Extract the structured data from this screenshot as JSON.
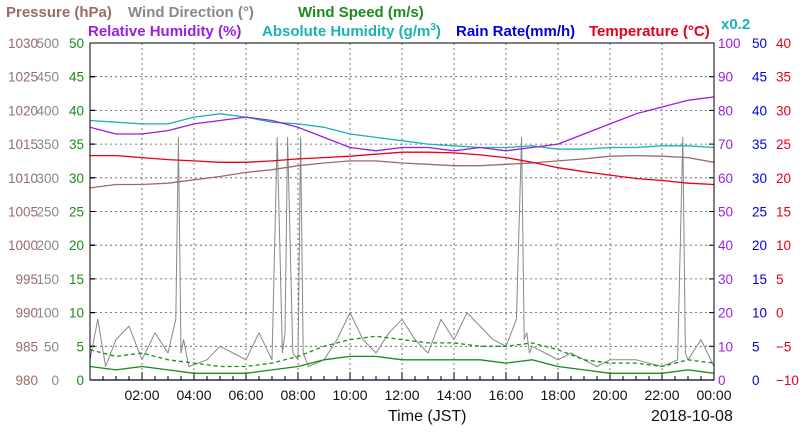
{
  "chart_data": {
    "type": "line",
    "date": "2018-10-08",
    "xlabel": "Time (JST)",
    "x_ticks": [
      "02:00",
      "04:00",
      "06:00",
      "08:00",
      "10:00",
      "12:00",
      "14:00",
      "16:00",
      "18:00",
      "20:00",
      "22:00",
      "00:00"
    ],
    "x_range_hours": [
      0,
      24
    ],
    "grid": true,
    "legend_placement": "top",
    "axes": {
      "pressure": {
        "title": "Pressure (hPa)",
        "color": "#9b6b6b",
        "range": [
          980,
          1030
        ],
        "ticks": [
          "980",
          "985",
          "990",
          "995",
          "1000",
          "1005",
          "1010",
          "1015",
          "1020",
          "1025",
          "1030"
        ]
      },
      "wind_direction": {
        "title": "Wind Direction (°)",
        "color": "#888888",
        "range": [
          0,
          500
        ],
        "ticks": [
          "0",
          "50",
          "100",
          "150",
          "200",
          "250",
          "300",
          "350",
          "400",
          "450",
          "500"
        ]
      },
      "wind_speed": {
        "title": "Wind Speed (m/s)",
        "color": "#1a8c1a",
        "range": [
          0,
          50
        ],
        "ticks": [
          "0",
          "5",
          "10",
          "15",
          "20",
          "25",
          "30",
          "35",
          "40",
          "45",
          "50"
        ]
      },
      "humidity": {
        "title": "Relative Humidity (%)",
        "color": "#9a1fe0",
        "range": [
          0,
          100
        ],
        "ticks": [
          "0",
          "10",
          "20",
          "30",
          "40",
          "50",
          "60",
          "70",
          "80",
          "90",
          "100"
        ]
      },
      "abs_humidity": {
        "title": "Absolute Humidity (g/m³)",
        "title_main": "Absolute Humidity (g/m",
        "title_sup": "3",
        "title_end": ")",
        "color": "#1ab2b2",
        "scale_note": "x0.2",
        "range": [
          0,
          20
        ]
      },
      "rain_rate": {
        "title": "Rain Rate(mm/h)",
        "color": "#0000dd",
        "range": [
          0,
          50
        ],
        "ticks": [
          "0",
          "5",
          "10",
          "15",
          "20",
          "25",
          "30",
          "35",
          "40",
          "45",
          "50"
        ]
      },
      "temperature": {
        "title": "Temperature (°C)",
        "color": "#e6001a",
        "range": [
          -10,
          40
        ],
        "ticks": [
          "−10",
          "−5",
          "0",
          "5",
          "10",
          "15",
          "20",
          "25",
          "30",
          "35",
          "40"
        ]
      }
    },
    "series": [
      {
        "name": "Pressure (hPa)",
        "axis": "pressure",
        "x": [
          0,
          1,
          2,
          3,
          4,
          5,
          6,
          7,
          8,
          9,
          10,
          11,
          12,
          13,
          14,
          15,
          16,
          17,
          18,
          19,
          20,
          21,
          22,
          23,
          24
        ],
        "y": [
          1008.5,
          1009.0,
          1009.0,
          1009.2,
          1009.7,
          1010.2,
          1010.8,
          1011.2,
          1011.8,
          1012.2,
          1012.5,
          1012.5,
          1012.2,
          1012.0,
          1011.8,
          1011.8,
          1012.0,
          1012.2,
          1012.5,
          1012.8,
          1013.2,
          1013.3,
          1013.2,
          1013.0,
          1012.3
        ]
      },
      {
        "name": "Relative Humidity (%)",
        "axis": "humidity",
        "x": [
          0,
          1,
          2,
          3,
          4,
          5,
          6,
          7,
          8,
          9,
          10,
          11,
          12,
          13,
          14,
          15,
          16,
          17,
          18,
          19,
          20,
          21,
          22,
          23,
          24
        ],
        "y": [
          75,
          73,
          73,
          74,
          76,
          77,
          78,
          77,
          75,
          72,
          69,
          68,
          69,
          69,
          68,
          69,
          68,
          69,
          70,
          73,
          76,
          79,
          81,
          83,
          84
        ]
      },
      {
        "name": "Absolute Humidity (g/m³)",
        "axis": "abs_humidity",
        "x": [
          0,
          1,
          2,
          3,
          4,
          5,
          6,
          7,
          8,
          9,
          10,
          11,
          12,
          13,
          14,
          15,
          16,
          17,
          18,
          19,
          20,
          21,
          22,
          23,
          24
        ],
        "y": [
          15.4,
          15.3,
          15.2,
          15.2,
          15.6,
          15.8,
          15.6,
          15.3,
          15.2,
          15.0,
          14.6,
          14.4,
          14.2,
          14.0,
          13.9,
          13.8,
          13.8,
          13.9,
          13.7,
          13.7,
          13.8,
          13.8,
          13.9,
          13.9,
          13.8
        ]
      },
      {
        "name": "Temperature (°C)",
        "axis": "temperature",
        "x": [
          0,
          1,
          2,
          3,
          4,
          5,
          6,
          7,
          8,
          9,
          10,
          11,
          12,
          13,
          14,
          15,
          16,
          17,
          18,
          19,
          20,
          21,
          22,
          23,
          24
        ],
        "y": [
          23.3,
          23.3,
          23.0,
          22.7,
          22.5,
          22.3,
          22.3,
          22.5,
          22.8,
          23.0,
          23.2,
          23.5,
          23.8,
          23.8,
          23.7,
          23.4,
          23.0,
          22.3,
          21.5,
          20.9,
          20.4,
          19.9,
          19.6,
          19.2,
          19.0
        ]
      },
      {
        "name": "Rain Rate(mm/h)",
        "axis": "rain_rate",
        "x": [
          0,
          24
        ],
        "y": [
          0,
          0
        ]
      },
      {
        "name": "Wind Direction (°)",
        "axis": "wind_direction",
        "x": [
          0,
          0.3,
          0.6,
          1.0,
          1.5,
          2.0,
          2.5,
          3.0,
          3.3,
          3.4,
          3.5,
          3.6,
          3.8,
          4.5,
          5.0,
          5.5,
          6.0,
          6.5,
          7.0,
          7.2,
          7.4,
          7.5,
          7.6,
          7.8,
          8.0,
          8.1,
          8.2,
          8.4,
          9.0,
          9.5,
          10.0,
          10.5,
          11.0,
          11.5,
          12.0,
          12.5,
          13.0,
          13.5,
          14.0,
          14.5,
          15.0,
          15.5,
          16.0,
          16.4,
          16.6,
          16.7,
          16.8,
          16.9,
          17.0,
          17.5,
          18.0,
          18.5,
          19.0,
          19.5,
          20.0,
          21.0,
          22.0,
          22.6,
          22.8,
          22.9,
          23.0,
          23.5,
          24.0
        ],
        "y": [
          30,
          90,
          20,
          60,
          80,
          30,
          70,
          40,
          90,
          360,
          40,
          60,
          20,
          30,
          50,
          40,
          30,
          70,
          30,
          360,
          40,
          70,
          360,
          40,
          30,
          360,
          40,
          20,
          30,
          60,
          100,
          60,
          40,
          70,
          90,
          60,
          40,
          90,
          60,
          100,
          80,
          60,
          50,
          90,
          360,
          60,
          70,
          40,
          50,
          40,
          30,
          40,
          30,
          20,
          30,
          30,
          20,
          30,
          360,
          40,
          30,
          60,
          20
        ]
      },
      {
        "name": "Wind Speed (m/s)",
        "axis": "wind_speed",
        "style": "dashed",
        "x": [
          0,
          1,
          2,
          3,
          4,
          5,
          6,
          7,
          8,
          9,
          10,
          11,
          12,
          13,
          14,
          15,
          16,
          17,
          18,
          19,
          20,
          21,
          22,
          23,
          24
        ],
        "y": [
          4.5,
          3.5,
          4.0,
          3.0,
          2.5,
          2.0,
          2.0,
          2.5,
          3.5,
          5.0,
          6.0,
          6.5,
          6.0,
          5.5,
          5.5,
          5.0,
          5.0,
          5.5,
          4.5,
          3.0,
          2.5,
          2.5,
          2.0,
          3.0,
          2.5
        ]
      },
      {
        "name": "Wind Speed (m/s)",
        "axis": "wind_speed",
        "style": "solid",
        "x": [
          0,
          1,
          2,
          3,
          4,
          5,
          6,
          7,
          8,
          9,
          10,
          11,
          12,
          13,
          14,
          15,
          16,
          17,
          18,
          19,
          20,
          21,
          22,
          23,
          24
        ],
        "y": [
          2.0,
          1.5,
          2.0,
          1.5,
          1.0,
          1.0,
          1.0,
          1.5,
          2.0,
          3.0,
          3.5,
          3.5,
          3.0,
          3.0,
          3.0,
          3.0,
          2.5,
          3.0,
          2.0,
          1.5,
          1.0,
          1.0,
          1.0,
          1.5,
          1.0
        ]
      }
    ]
  }
}
